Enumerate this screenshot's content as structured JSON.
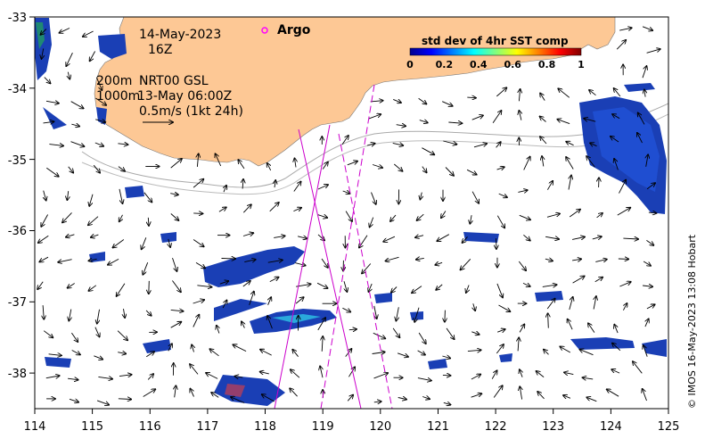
{
  "map": {
    "date_line": "14-May-2023",
    "hour_line": "16Z",
    "depth_line_1": "200m",
    "depth_line_2": "1000m",
    "model_line": "NRT00 GSL",
    "model_time": "13-May 06:00Z",
    "scale_label": "0.5m/s (1kt 24h)",
    "argo_label": "Argo",
    "credit": "© IMOS 16-May-2023 13:08 Hobart",
    "x_ticks": [
      "114",
      "115",
      "116",
      "117",
      "118",
      "119",
      "120",
      "121",
      "122",
      "123",
      "124",
      "125"
    ],
    "y_ticks": [
      "-33",
      "-34",
      "-35",
      "-36",
      "-37",
      "-38"
    ],
    "x_range": [
      114,
      125
    ],
    "y_range": [
      -38.5,
      -33
    ]
  },
  "colorbar": {
    "title": "std dev of 4hr SST comp",
    "ticks": [
      "0",
      "0.2",
      "0.4",
      "0.6",
      "0.8",
      "1"
    ],
    "range": [
      0,
      1
    ]
  },
  "colors": {
    "land": "#fdc895",
    "ocean": "#ffffff",
    "tracks": "#cc00cc",
    "argo_marker": "#ff00ff",
    "data_main": "#1a3fb5"
  }
}
